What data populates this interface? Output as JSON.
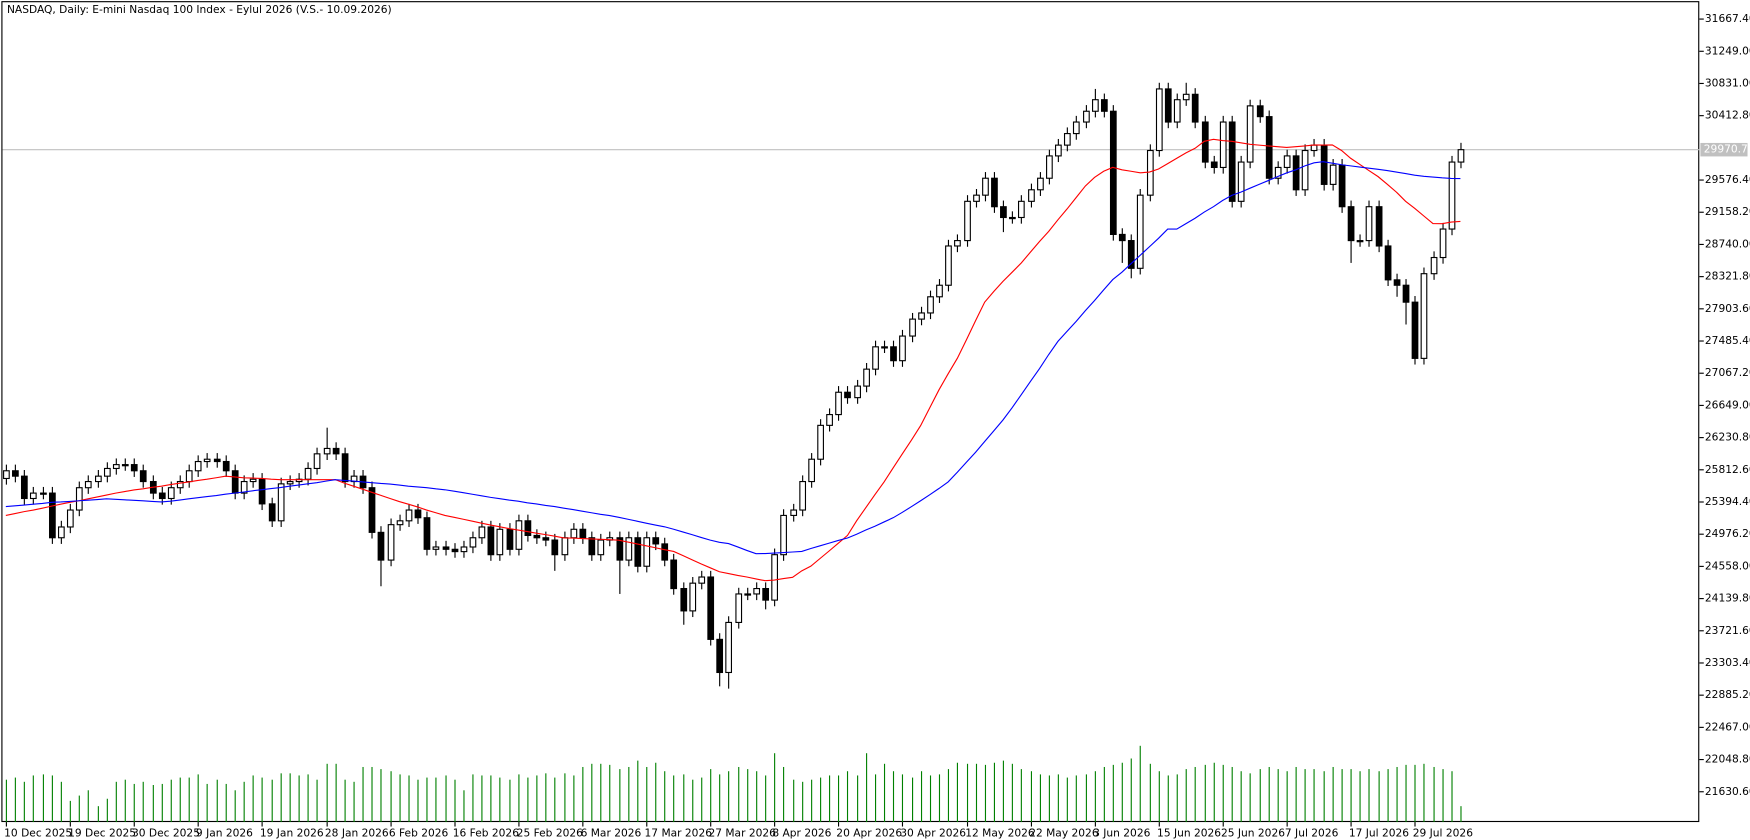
{
  "chart_data": {
    "type": "candlestick",
    "title": "NASDAQ, Daily:  E-mini Nasdaq 100 Index - Eylul 2026 (V.S.- 10.09.2026)",
    "categories": [
      "10 Dec 2025",
      null,
      null,
      null,
      null,
      null,
      null,
      "19 Dec 2025",
      null,
      null,
      null,
      null,
      null,
      null,
      "30 Dec 2025",
      null,
      null,
      null,
      null,
      null,
      null,
      "9 Jan 2026",
      null,
      null,
      null,
      null,
      null,
      null,
      "19 Jan 2026",
      null,
      null,
      null,
      null,
      null,
      null,
      "28 Jan 2026",
      null,
      null,
      null,
      null,
      null,
      null,
      "6 Feb 2026",
      null,
      null,
      null,
      null,
      null,
      null,
      "16 Feb 2026",
      null,
      null,
      null,
      null,
      null,
      null,
      "25 Feb 2026",
      null,
      null,
      null,
      null,
      null,
      null,
      "6 Mar 2026",
      null,
      null,
      null,
      null,
      null,
      null,
      "17 Mar 2026",
      null,
      null,
      null,
      null,
      null,
      null,
      "27 Mar 2026",
      null,
      null,
      null,
      null,
      null,
      null,
      "8 Apr 2026",
      null,
      null,
      null,
      null,
      null,
      null,
      "20 Apr 2026",
      null,
      null,
      null,
      null,
      null,
      null,
      "30 Apr 2026",
      null,
      null,
      null,
      null,
      null,
      null,
      "12 May 2026",
      null,
      null,
      null,
      null,
      null,
      null,
      "22 May 2026",
      null,
      null,
      null,
      null,
      null,
      null,
      "3 Jun 2026",
      null,
      null,
      null,
      null,
      null,
      null,
      "15 Jun 2026",
      null,
      null,
      null,
      null,
      null,
      null,
      "25 Jun 2026",
      null,
      null,
      null,
      null,
      null,
      null,
      "7 Jul 2026",
      null,
      null,
      null,
      null,
      null,
      null,
      "17 Jul 2026",
      null,
      null,
      null,
      null,
      null,
      null,
      "29 Jul 2026",
      null,
      null,
      null,
      null,
      null
    ],
    "open": [
      25700,
      25800,
      25730,
      25440,
      25510,
      25510,
      24930,
      25070,
      25290,
      25580,
      25660,
      25730,
      25830,
      25880,
      25880,
      25800,
      25660,
      25510,
      25440,
      25580,
      25660,
      25800,
      25920,
      25950,
      25920,
      25800,
      25510,
      25660,
      25690,
      25370,
      25150,
      25630,
      25660,
      25690,
      25830,
      26020,
      26090,
      26020,
      25660,
      25730,
      25580,
      25000,
      24640,
      25100,
      25150,
      25290,
      25190,
      24780,
      24810,
      24780,
      24750,
      24810,
      24930,
      25070,
      24710,
      25040,
      24780,
      25150,
      24960,
      24930,
      24900,
      24710,
      24930,
      25040,
      24930,
      24710,
      24900,
      24930,
      24640,
      24930,
      24560,
      24930,
      24850,
      24640,
      24270,
      23980,
      24340,
      24420,
      23610,
      23180,
      23830,
      24200,
      24200,
      24270,
      24120,
      24710,
      25220,
      25290,
      25660,
      25950,
      26390,
      26530,
      26820,
      26750,
      26900,
      27120,
      27410,
      27410,
      27230,
      27550,
      27770,
      27850,
      28060,
      28210,
      28720,
      28790,
      29300,
      29380,
      29600,
      29230,
      29090,
      29090,
      29300,
      29450,
      29600,
      29890,
      30030,
      30180,
      30330,
      30470,
      30620,
      30470,
      28870,
      28790,
      28430,
      29380,
      29960,
      30760,
      30330,
      30620,
      30690,
      30330,
      29810,
      29740,
      30330,
      29300,
      29810,
      30540,
      30400,
      29600,
      29740,
      29890,
      29450,
      29960,
      30030,
      29520,
      29770,
      29230,
      28790,
      28790,
      29230,
      28720,
      28280,
      28210,
      27990,
      27260,
      28360,
      28570,
      28940,
      29810
    ],
    "high": [
      25880,
      25880,
      25810,
      25590,
      25590,
      25590,
      25150,
      25370,
      25660,
      25740,
      25810,
      25910,
      25960,
      25960,
      25960,
      25880,
      25740,
      25590,
      25660,
      25740,
      25880,
      26000,
      26030,
      26030,
      26000,
      25880,
      25740,
      25770,
      25770,
      25450,
      25710,
      25740,
      25770,
      25910,
      26100,
      26360,
      26170,
      26100,
      25810,
      25810,
      25660,
      25080,
      25180,
      25230,
      25370,
      25370,
      25270,
      24890,
      24890,
      24860,
      24890,
      25010,
      25150,
      25150,
      25120,
      25120,
      25230,
      25230,
      25040,
      25010,
      24980,
      25010,
      25120,
      25120,
      25010,
      24980,
      25010,
      25010,
      25010,
      25010,
      25010,
      25010,
      24930,
      24720,
      24350,
      24420,
      24500,
      24500,
      23690,
      23910,
      24280,
      24280,
      24350,
      24350,
      24790,
      25300,
      25370,
      25740,
      26030,
      26470,
      26610,
      26900,
      26900,
      26980,
      27200,
      27490,
      27490,
      27490,
      27630,
      27850,
      27930,
      28140,
      28290,
      28800,
      28870,
      29380,
      29460,
      29680,
      29680,
      29310,
      29170,
      29380,
      29530,
      29680,
      29970,
      30110,
      30260,
      30410,
      30550,
      30760,
      30700,
      30550,
      28950,
      28870,
      29460,
      30040,
      30840,
      30840,
      30700,
      30840,
      30770,
      30410,
      29890,
      30410,
      30410,
      29890,
      30620,
      30620,
      30480,
      29820,
      29970,
      29970,
      30040,
      30110,
      30110,
      29850,
      29850,
      29310,
      28870,
      29310,
      29310,
      28800,
      28360,
      28290,
      28070,
      28440,
      28650,
      29020,
      29890,
      30060
    ],
    "low": [
      25620,
      25650,
      25360,
      25360,
      25430,
      24850,
      24850,
      24990,
      25210,
      25500,
      25580,
      25650,
      25750,
      25800,
      25720,
      25580,
      25430,
      25360,
      25360,
      25500,
      25580,
      25720,
      25840,
      25840,
      25720,
      25430,
      25430,
      25580,
      25290,
      25070,
      25070,
      25550,
      25580,
      25610,
      25750,
      25940,
      25940,
      25580,
      25580,
      25500,
      24920,
      24300,
      24560,
      25020,
      25070,
      25110,
      24700,
      24700,
      24700,
      24670,
      24670,
      24730,
      24850,
      24630,
      24630,
      24700,
      24700,
      24880,
      24850,
      24820,
      24500,
      24630,
      24850,
      24850,
      24630,
      24630,
      24820,
      24200,
      24560,
      24480,
      24480,
      24770,
      24560,
      24190,
      23800,
      23900,
      24260,
      23530,
      23000,
      22970,
      23750,
      24120,
      24120,
      24000,
      24040,
      24630,
      25140,
      25210,
      25580,
      25870,
      26310,
      26450,
      26670,
      26670,
      26820,
      27040,
      27330,
      27150,
      27150,
      27470,
      27690,
      27770,
      27980,
      28130,
      28640,
      28710,
      29220,
      29300,
      29150,
      28900,
      29010,
      29010,
      29220,
      29370,
      29520,
      29810,
      29950,
      30100,
      30250,
      30390,
      30390,
      28790,
      28500,
      28300,
      28350,
      29300,
      29880,
      30250,
      30250,
      30540,
      30250,
      29730,
      29660,
      29660,
      29220,
      29220,
      29730,
      30320,
      29520,
      29520,
      29660,
      29370,
      29370,
      29880,
      29440,
      29440,
      29150,
      28500,
      28710,
      28710,
      28640,
      28200,
      28060,
      27700,
      27180,
      27180,
      28280,
      28490,
      28860,
      29730
    ],
    "close": [
      25800,
      25730,
      25440,
      25510,
      25510,
      24930,
      25070,
      25290,
      25580,
      25660,
      25730,
      25830,
      25880,
      25880,
      25800,
      25660,
      25510,
      25440,
      25580,
      25660,
      25800,
      25920,
      25950,
      25920,
      25800,
      25510,
      25660,
      25690,
      25370,
      25150,
      25630,
      25660,
      25690,
      25830,
      26020,
      26090,
      26020,
      25660,
      25730,
      25580,
      25000,
      24640,
      25100,
      25150,
      25290,
      25190,
      24780,
      24810,
      24780,
      24750,
      24810,
      24930,
      25070,
      24710,
      25040,
      24780,
      25150,
      24960,
      24930,
      24900,
      24710,
      24930,
      25040,
      24930,
      24710,
      24900,
      24930,
      24640,
      24930,
      24560,
      24930,
      24850,
      24640,
      24270,
      23980,
      24340,
      24420,
      23610,
      23180,
      23830,
      24200,
      24200,
      24270,
      24120,
      24710,
      25220,
      25290,
      25660,
      25950,
      26390,
      26530,
      26820,
      26750,
      26900,
      27120,
      27410,
      27410,
      27230,
      27550,
      27770,
      27850,
      28060,
      28210,
      28720,
      28790,
      29300,
      29380,
      29600,
      29230,
      29090,
      29090,
      29300,
      29450,
      29600,
      29890,
      30030,
      30180,
      30330,
      30470,
      30620,
      30470,
      28870,
      28790,
      28430,
      29380,
      29960,
      30760,
      30330,
      30620,
      30690,
      30330,
      29810,
      29740,
      30330,
      29300,
      29810,
      30540,
      30400,
      29600,
      29740,
      29890,
      29450,
      29960,
      30030,
      29520,
      29770,
      29230,
      28790,
      28790,
      29230,
      28720,
      28280,
      28210,
      27990,
      27260,
      28360,
      28570,
      28940,
      29810,
      29970.75
    ],
    "volume": [
      40,
      42,
      38,
      44,
      45,
      44,
      38,
      20,
      25,
      30,
      15,
      22,
      38,
      40,
      36,
      38,
      35,
      36,
      40,
      42,
      42,
      45,
      36,
      40,
      36,
      30,
      38,
      44,
      42,
      40,
      46,
      46,
      44,
      45,
      40,
      55,
      55,
      40,
      38,
      52,
      52,
      50,
      48,
      45,
      44,
      40,
      42,
      42,
      44,
      40,
      30,
      45,
      44,
      44,
      42,
      40,
      45,
      42,
      44,
      46,
      42,
      46,
      44,
      52,
      55,
      55,
      54,
      50,
      52,
      58,
      52,
      56,
      48,
      44,
      45,
      40,
      42,
      50,
      45,
      48,
      52,
      50,
      48,
      44,
      65,
      52,
      40,
      38,
      40,
      42,
      44,
      44,
      48,
      44,
      65,
      45,
      55,
      48,
      45,
      42,
      48,
      44,
      45,
      50,
      56,
      55,
      55,
      54,
      56,
      58,
      55,
      50,
      48,
      45,
      44,
      45,
      42,
      44,
      45,
      48,
      52,
      54,
      56,
      60,
      72,
      55,
      48,
      44,
      45,
      50,
      52,
      54,
      56,
      54,
      52,
      48,
      46,
      50,
      52,
      50,
      48,
      52,
      50,
      50,
      48,
      52,
      50,
      50,
      48,
      50,
      48,
      50,
      52,
      54,
      54,
      55,
      52,
      50,
      48,
      15
    ],
    "up_color": "#ffffff",
    "down_color": "#000000",
    "volume_color": "#008000",
    "moving_averages": [
      {
        "color": "#ff0000",
        "values": [
          25220,
          25245,
          25270,
          25290,
          25315,
          25340,
          25365,
          25390,
          25410,
          25435,
          25460,
          25485,
          25510,
          25530,
          25550,
          25565,
          25585,
          25600,
          25620,
          25640,
          25655,
          25675,
          25690,
          25710,
          25729,
          25720,
          25710,
          25705,
          25700,
          25690,
          25685,
          25685,
          25685,
          25685,
          25685,
          25685,
          25685,
          25640,
          25600,
          25560,
          25520,
          25480,
          25440,
          25400,
          25365,
          25330,
          25290,
          25255,
          25220,
          25195,
          25170,
          25145,
          25120,
          25095,
          25073,
          25050,
          25030,
          25010,
          24990,
          24970,
          24950,
          24927,
          24925,
          24920,
          24915,
          24910,
          24905,
          24898,
          24875,
          24850,
          24825,
          24800,
          24775,
          24752,
          24700,
          24645,
          24590,
          24540,
          24489,
          24465,
          24440,
          24420,
          24395,
          24372,
          24380,
          24400,
          24416,
          24500,
          24562,
          24660,
          24760,
          24860,
          24960,
          25150,
          25320,
          25490,
          25656,
          25840,
          26020,
          26200,
          26386,
          26620,
          26850,
          27060,
          27261,
          27500,
          27750,
          27991,
          28130,
          28260,
          28380,
          28501,
          28640,
          28780,
          28910,
          29060,
          29200,
          29350,
          29500,
          29610,
          29690,
          29741,
          29710,
          29690,
          29670,
          29680,
          29720,
          29790,
          29860,
          29930,
          29990,
          30080,
          30106,
          30090,
          30080,
          30060,
          30040,
          30030,
          30020,
          30010,
          30000,
          30010,
          30020,
          30033,
          30030,
          30033,
          29960,
          29860,
          29780,
          29700,
          29620,
          29523,
          29420,
          29300,
          29210,
          29110,
          29012,
          29010,
          29030,
          29040
        ]
      },
      {
        "color": "#0000ff",
        "values": [
          25335,
          25345,
          25355,
          25365,
          25375,
          25390,
          25395,
          25402,
          25410,
          25418,
          25426,
          25435,
          25430,
          25423,
          25416,
          25409,
          25402,
          25395,
          25405,
          25420,
          25435,
          25450,
          25465,
          25478,
          25495,
          25510,
          25525,
          25540,
          25555,
          25570,
          25583,
          25600,
          25615,
          25630,
          25645,
          25665,
          25685,
          25675,
          25665,
          25655,
          25645,
          25635,
          25627,
          25615,
          25600,
          25590,
          25580,
          25565,
          25554,
          25535,
          25515,
          25495,
          25475,
          25455,
          25437,
          25420,
          25405,
          25385,
          25370,
          25350,
          25335,
          25315,
          25295,
          25275,
          25255,
          25235,
          25219,
          25195,
          25170,
          25145,
          25120,
          25095,
          25073,
          25040,
          25005,
          24970,
          24935,
          24900,
          24870,
          24854,
          24810,
          24765,
          24723,
          24725,
          24730,
          24738,
          24745,
          24752,
          24790,
          24825,
          24860,
          24895,
          24927,
          24975,
          25030,
          25080,
          25135,
          25190,
          25260,
          25335,
          25410,
          25490,
          25570,
          25656,
          25780,
          25910,
          26040,
          26180,
          26320,
          26459,
          26620,
          26790,
          26960,
          27130,
          27310,
          27480,
          27610,
          27740,
          27880,
          28010,
          28150,
          28283,
          28380,
          28490,
          28600,
          28710,
          28820,
          28939,
          28939,
          29010,
          29080,
          29160,
          29230,
          29310,
          29377,
          29420,
          29470,
          29520,
          29570,
          29620,
          29669,
          29710,
          29760,
          29800,
          29814,
          29795,
          29775,
          29760,
          29745,
          29730,
          29715,
          29700,
          29680,
          29660,
          29640,
          29625,
          29615,
          29605,
          29598,
          29596
        ]
      }
    ],
    "current_price": {
      "value": 29970.75,
      "label": "29970.75"
    },
    "current_price_color": "#c0c0c0",
    "ylim": [
      21237,
      31886
    ],
    "yticks": [
      {
        "value": 31667.4,
        "label": "31667.40"
      },
      {
        "value": 31249.0,
        "label": "31249.00"
      },
      {
        "value": 30831.0,
        "label": "30831.00"
      },
      {
        "value": 30412.8,
        "label": "30412.80"
      },
      {
        "value": 29576.4,
        "label": "29576.40"
      },
      {
        "value": 29158.2,
        "label": "29158.20"
      },
      {
        "value": 28740.0,
        "label": "28740.00"
      },
      {
        "value": 28321.8,
        "label": "28321.80"
      },
      {
        "value": 27903.6,
        "label": "27903.60"
      },
      {
        "value": 27485.4,
        "label": "27485.40"
      },
      {
        "value": 27067.2,
        "label": "27067.20"
      },
      {
        "value": 26649.0,
        "label": "26649.00"
      },
      {
        "value": 26230.8,
        "label": "26230.80"
      },
      {
        "value": 25812.6,
        "label": "25812.60"
      },
      {
        "value": 25394.4,
        "label": "25394.40"
      },
      {
        "value": 24976.2,
        "label": "24976.20"
      },
      {
        "value": 24558.0,
        "label": "24558.00"
      },
      {
        "value": 24139.8,
        "label": "24139.80"
      },
      {
        "value": 23721.6,
        "label": "23721.60"
      },
      {
        "value": 23303.4,
        "label": "23303.40"
      },
      {
        "value": 22885.2,
        "label": "22885.20"
      },
      {
        "value": 22467.0,
        "label": "22467.00"
      },
      {
        "value": 22048.8,
        "label": "22048.80"
      },
      {
        "value": 21630.6,
        "label": "21630.60"
      }
    ]
  }
}
